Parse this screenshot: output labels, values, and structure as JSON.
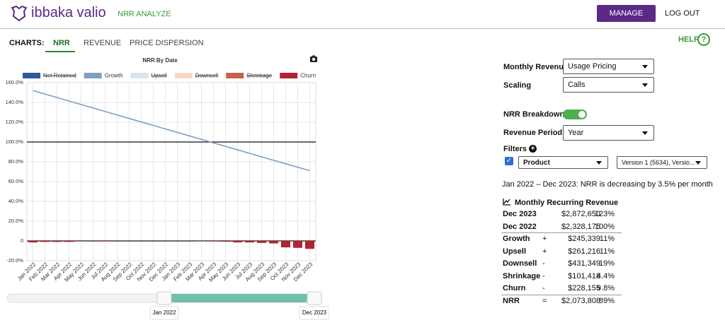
{
  "header": {
    "logo": "ibbaka valio",
    "nav": "NRR ANALYZE",
    "manage": "MANAGE",
    "logout": "LOG OUT"
  },
  "tabs": {
    "label": "CHARTS:",
    "items": [
      "NRR",
      "REVENUE",
      "PRICE DISPERSION"
    ],
    "active": 0,
    "help": "HELP",
    "help_icon": "?"
  },
  "chart_data": {
    "type": "line",
    "title": "NRR By Date",
    "categories": [
      "Jan 2022",
      "Feb 2022",
      "Mar 2022",
      "Apr 2022",
      "May 2022",
      "Jun 2022",
      "Jul 2022",
      "Aug 2022",
      "Sep 2022",
      "Oct 2022",
      "Nov 2022",
      "Dec 2022",
      "Jan 2023",
      "Feb 2023",
      "Mar 2023",
      "Apr 2023",
      "May 2023",
      "Jun 2023",
      "Jul 2023",
      "Aug 2023",
      "Sep 2023",
      "Oct 2023",
      "Nov 2023",
      "Dec 2023"
    ],
    "series": [
      {
        "name": "Net Retained",
        "color": "#2e5c9a",
        "hidden": true
      },
      {
        "name": "Growth",
        "color": "#7f9fc4",
        "type": "line",
        "values": [
          152,
          148.5,
          145,
          141.4,
          137.9,
          134.4,
          130.9,
          127.3,
          123.8,
          120.3,
          116.8,
          113.2,
          109.7,
          106.2,
          102.7,
          99.1,
          95.6,
          92.1,
          88.6,
          85,
          81.5,
          78,
          74.5,
          71
        ]
      },
      {
        "name": "Upsell",
        "color": "#d6e4ef",
        "hidden": true
      },
      {
        "name": "Downsell",
        "color": "#f5d9c6",
        "hidden": true
      },
      {
        "name": "Shrinkage",
        "color": "#c7604f",
        "hidden": true
      },
      {
        "name": "Churn",
        "color": "#b0232f",
        "type": "bar",
        "values": [
          -1.5,
          -1,
          -1,
          -1,
          -0.5,
          0,
          -0.5,
          0,
          0,
          0,
          0,
          0,
          0,
          0,
          -0.3,
          -0.5,
          -0.8,
          -1.5,
          -1.5,
          -2,
          -2.5,
          -6.5,
          -7,
          -8
        ]
      }
    ],
    "ylim": [
      -20,
      160
    ],
    "yticks": [
      {
        "value": -20,
        "label": "-20.0%"
      },
      {
        "value": 0,
        "label": "0"
      },
      {
        "value": 20,
        "label": "20.0%"
      },
      {
        "value": 40,
        "label": "40.0%"
      },
      {
        "value": 60,
        "label": "60.0%"
      },
      {
        "value": 80,
        "label": "80.0%"
      },
      {
        "value": 100,
        "label": "100.0%"
      },
      {
        "value": 120,
        "label": "120.0%"
      },
      {
        "value": 140,
        "label": "140.0%"
      },
      {
        "value": 160,
        "label": "160.0%"
      }
    ],
    "reference_lines": [
      0,
      100
    ],
    "grid": true
  },
  "slider": {
    "start": "Jan 2022",
    "end": "Dec 2023"
  },
  "controls": {
    "fields": [
      {
        "label": "Monthly Revenue",
        "value": "Usage Pricing"
      },
      {
        "label": "Scaling",
        "value": "Calls"
      }
    ],
    "breakdown": {
      "label": "NRR Breakdown",
      "on": true
    },
    "period": {
      "label": "Revenue Period",
      "value": "Year"
    },
    "filters": {
      "label": "Filters",
      "checked": true,
      "field": "Product",
      "value": "Version 1 (5634), Versio..."
    }
  },
  "summary": "Jan 2022 – Dec 2023: NRR is decreasing by 3.5% per month",
  "mrr": {
    "title": "Monthly Recurring Revenue",
    "rows": [
      {
        "label": "Dec 2023",
        "amount": "$2,872,650",
        "pct": "123%"
      },
      {
        "label": "Dec 2022",
        "amount": "$2,328,175",
        "pct": "100%"
      },
      {
        "label": "Growth",
        "sign": "+",
        "amount": "$245,339",
        "pct": "11%"
      },
      {
        "label": "Upsell",
        "sign": "+",
        "amount": "$261,216",
        "pct": "11%"
      },
      {
        "label": "Downsell",
        "sign": "-",
        "amount": "$431,349",
        "pct": "19%"
      },
      {
        "label": "Shrinkage",
        "sign": "-",
        "amount": "$101,418",
        "pct": "4.4%"
      },
      {
        "label": "Churn",
        "sign": "-",
        "amount": "$228,155",
        "pct": "9.8%"
      },
      {
        "label": "NRR",
        "sign": "=",
        "amount": "$2,073,808",
        "pct": "89%"
      }
    ]
  }
}
